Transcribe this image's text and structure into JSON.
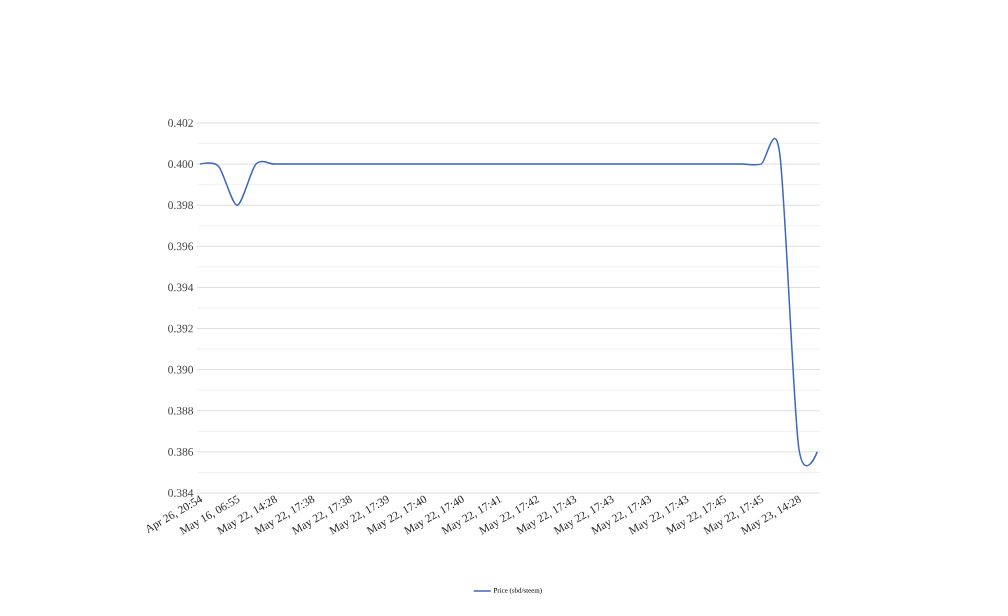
{
  "chart_data": {
    "type": "line",
    "categories": [
      "Apr 26, 20:54",
      null,
      "May 16, 06:55",
      null,
      "May 22, 14:28",
      null,
      "May 22, 17:38",
      null,
      "May 22, 17:38",
      null,
      "May 22, 17:39",
      null,
      "May 22, 17:40",
      null,
      "May 22, 17:40",
      null,
      "May 22, 17:41",
      null,
      "May 22, 17:42",
      null,
      "May 22, 17:43",
      null,
      "May 22, 17:43",
      null,
      "May 22, 17:43",
      null,
      "May 22, 17:43",
      null,
      "May 22, 17:45",
      null,
      "May 22, 17:45",
      null,
      "May 23, 14:28",
      null
    ],
    "series": [
      {
        "name": "Price (sbd/steem)",
        "color": "#3a67c0",
        "values": [
          0.4,
          0.3999,
          0.398,
          0.4,
          0.4,
          0.4,
          0.4,
          0.4,
          0.4,
          0.4,
          0.4,
          0.4,
          0.4,
          0.4,
          0.4,
          0.4,
          0.4,
          0.4,
          0.4,
          0.4,
          0.4,
          0.4,
          0.4,
          0.4,
          0.4,
          0.4,
          0.4,
          0.4,
          0.4,
          0.4,
          0.4,
          0.4005,
          0.3863,
          0.386
        ]
      }
    ],
    "ylim": [
      0.384,
      0.402
    ],
    "yticks": [
      {
        "value": 0.384,
        "label": "0.384"
      },
      {
        "value": 0.386,
        "label": "0.386"
      },
      {
        "value": 0.388,
        "label": "0.388"
      },
      {
        "value": 0.39,
        "label": "0.390"
      },
      {
        "value": 0.392,
        "label": "0.392"
      },
      {
        "value": 0.394,
        "label": "0.394"
      },
      {
        "value": 0.396,
        "label": "0.396"
      },
      {
        "value": 0.398,
        "label": "0.398"
      },
      {
        "value": 0.4,
        "label": "0.400"
      },
      {
        "value": 0.402,
        "label": "0.402"
      }
    ],
    "grid": "y",
    "legend": "bottom",
    "marker": "none",
    "line_style": "solid"
  }
}
